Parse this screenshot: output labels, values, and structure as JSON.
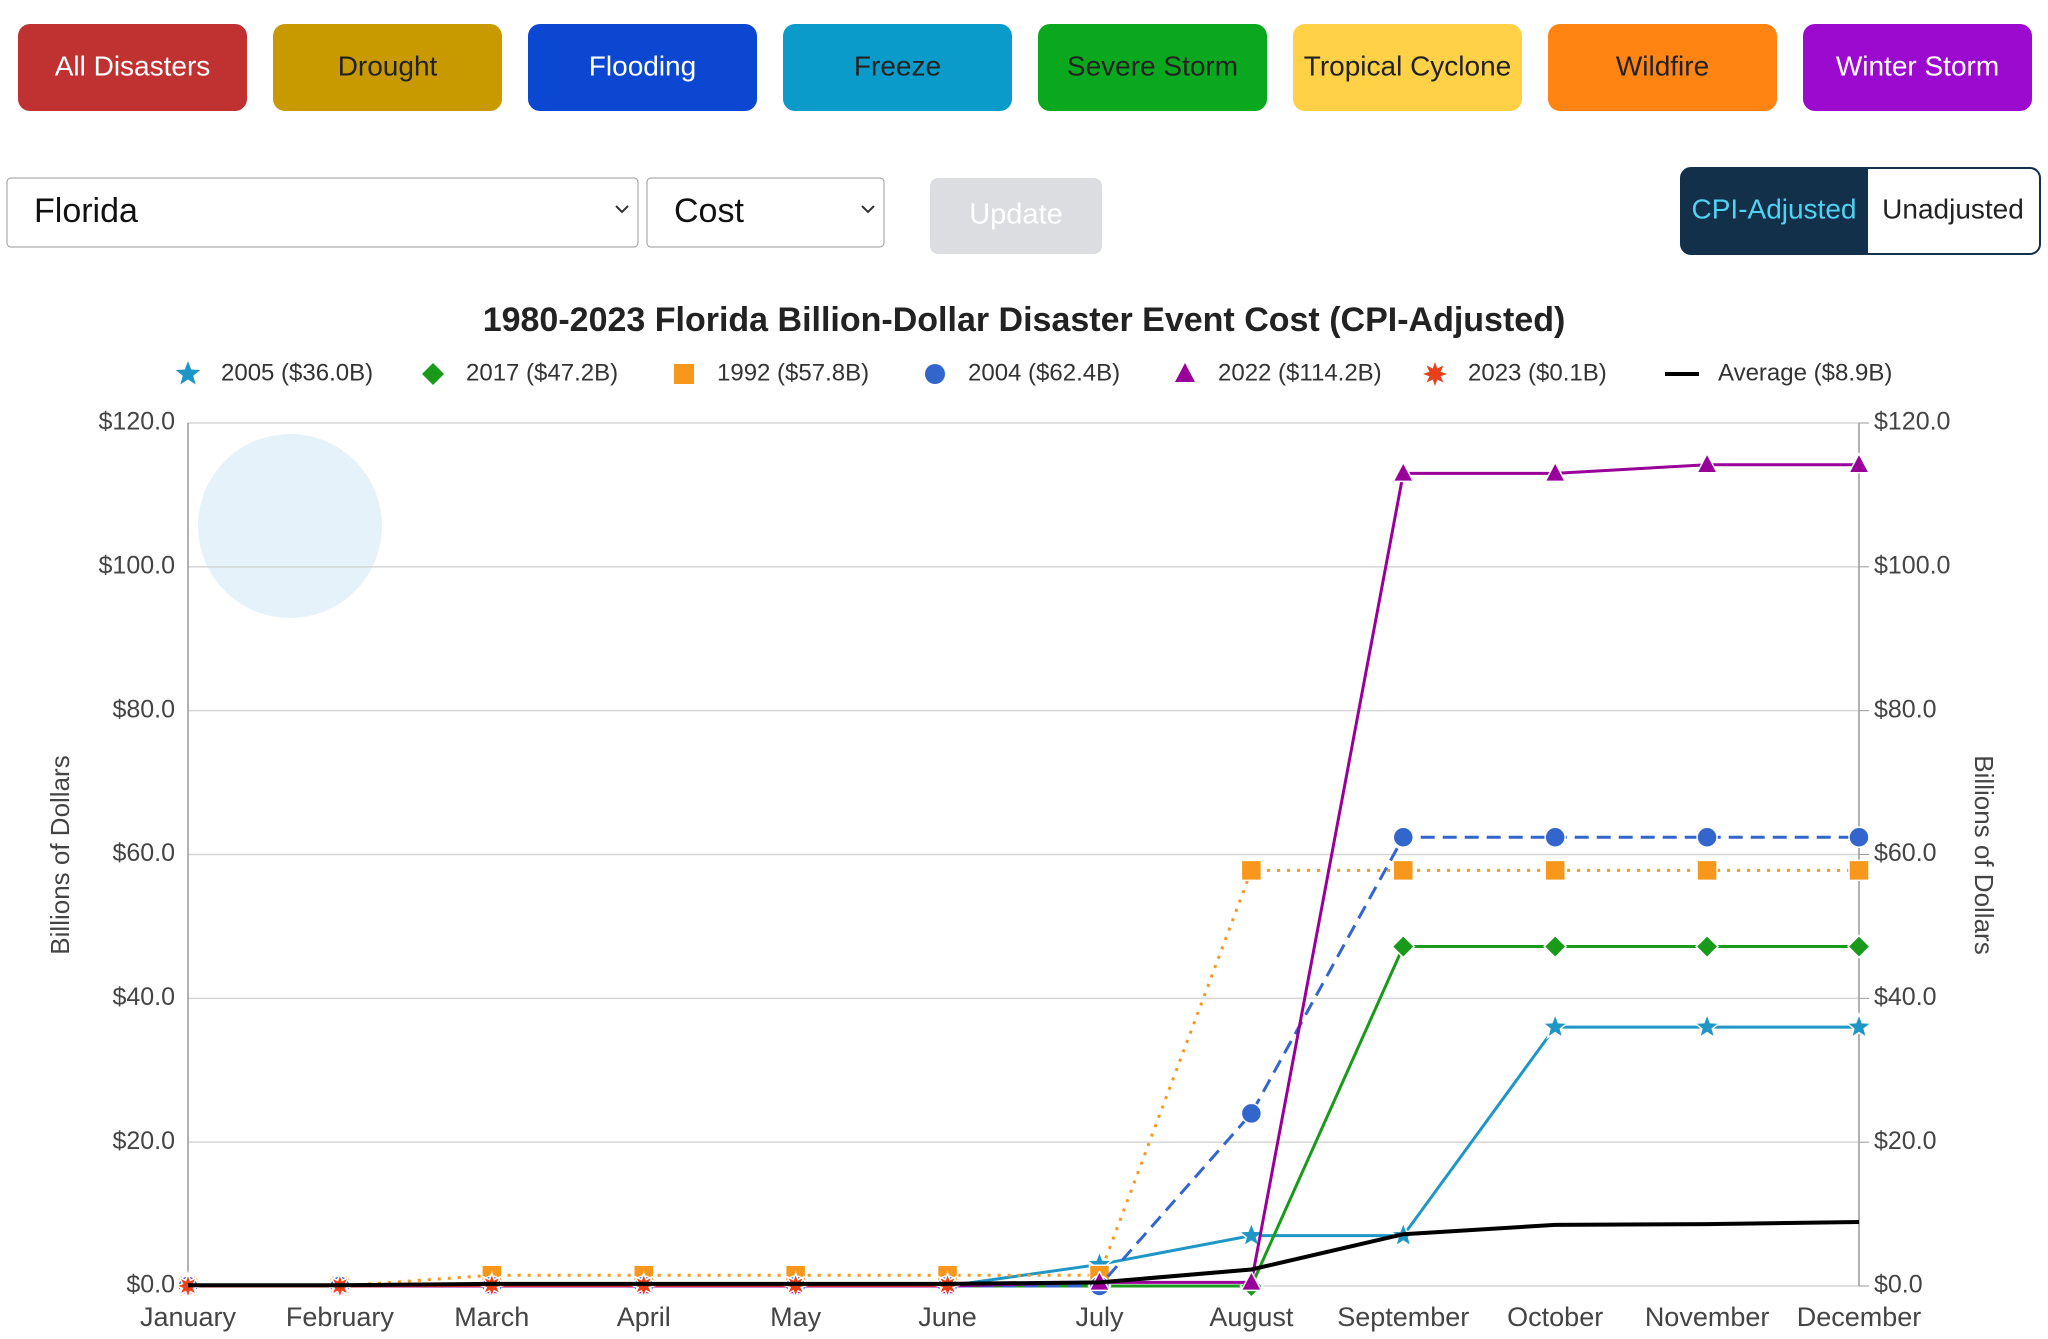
{
  "buttons": [
    "All Disasters",
    "Drought",
    "Flooding",
    "Freeze",
    "Severe Storm",
    "Tropical Cyclone",
    "Wildfire",
    "Winter Storm"
  ],
  "button_colors": [
    "#c03232",
    "#c99a00",
    "#0c47d1",
    "#0a9bcb",
    "#0aa81e",
    "#ffd147",
    "#ff8412",
    "#9c0acf"
  ],
  "button_text_colors": [
    "#ffffff",
    "#222222",
    "#ffffff",
    "#222222",
    "#222222",
    "#222222",
    "#222222",
    "#ffffff"
  ],
  "state_select": "Florida",
  "metric_select": "Cost",
  "update_button": "Update",
  "toggle": [
    "CPI-Adjusted",
    "Unadjusted"
  ],
  "chart_data": {
    "type": "line",
    "title": "1980-2023 Florida Billion-Dollar Disaster Event Cost (CPI-Adjusted)",
    "categories": [
      "January",
      "February",
      "March",
      "April",
      "May",
      "June",
      "July",
      "August",
      "September",
      "October",
      "November",
      "December"
    ],
    "y_label": "Billions of Dollars",
    "y2_label": "Billions of Dollars",
    "ylim": [
      0,
      120
    ],
    "yticks": [
      {
        "value": 0,
        "label": "$0.0"
      },
      {
        "value": 20,
        "label": "$20.0"
      },
      {
        "value": 40,
        "label": "$40.0"
      },
      {
        "value": 60,
        "label": "$60.0"
      },
      {
        "value": 80,
        "label": "$80.0"
      },
      {
        "value": 100,
        "label": "$100.0"
      },
      {
        "value": 120,
        "label": "$120.0"
      }
    ],
    "y2lim": [
      0,
      120
    ],
    "y2ticks": [
      {
        "value": 0,
        "label": "$0.0"
      },
      {
        "value": 20,
        "label": "$20.0"
      },
      {
        "value": 40,
        "label": "$40.0"
      },
      {
        "value": 60,
        "label": "$60.0"
      },
      {
        "value": 80,
        "label": "$80.0"
      },
      {
        "value": 100,
        "label": "$100.0"
      },
      {
        "value": 120,
        "label": "$120.0"
      }
    ],
    "grid": true,
    "legend": "top",
    "series": [
      {
        "name": "2005 ($36.0B)",
        "color": "#1f97c6",
        "marker": "star",
        "dash": "solid",
        "values": [
          0,
          0,
          0,
          0,
          0,
          0,
          3,
          7,
          7,
          36,
          36,
          36
        ]
      },
      {
        "name": "2017 ($47.2B)",
        "color": "#1a9a1a",
        "marker": "diamond",
        "dash": "solid",
        "values": [
          0,
          0,
          0,
          0,
          0,
          0,
          0,
          0,
          47.2,
          47.2,
          47.2,
          47.2
        ]
      },
      {
        "name": "1992 ($57.8B)",
        "color": "#f7981d",
        "marker": "square",
        "dash": "dotted",
        "values": [
          0,
          0,
          1.5,
          1.5,
          1.5,
          1.5,
          1.5,
          57.8,
          57.8,
          57.8,
          57.8,
          57.8
        ]
      },
      {
        "name": "2004 ($62.4B)",
        "color": "#3366cc",
        "marker": "circle",
        "dash": "dashed",
        "values": [
          0,
          0,
          0,
          0,
          0,
          0,
          0,
          24,
          62.4,
          62.4,
          62.4,
          62.4
        ]
      },
      {
        "name": "2022 ($114.2B)",
        "color": "#990099",
        "marker": "triangle",
        "dash": "solid",
        "values": [
          0,
          0,
          0,
          0,
          0,
          0,
          0.5,
          0.5,
          113,
          113,
          114.2,
          114.2
        ]
      },
      {
        "name": "2023 ($0.1B)",
        "color": "#e8401a",
        "marker": "burst",
        "dash": "solid",
        "values": [
          0,
          0,
          0.1,
          0.1,
          0.1,
          0.1,
          null,
          null,
          null,
          null,
          null,
          null
        ]
      },
      {
        "name": "Average ($8.9B)",
        "color": "#000000",
        "marker": "none",
        "dash": "solid",
        "values": [
          0.1,
          0.1,
          0.3,
          0.3,
          0.3,
          0.3,
          0.5,
          2.3,
          7.2,
          8.5,
          8.6,
          8.9
        ]
      }
    ]
  }
}
